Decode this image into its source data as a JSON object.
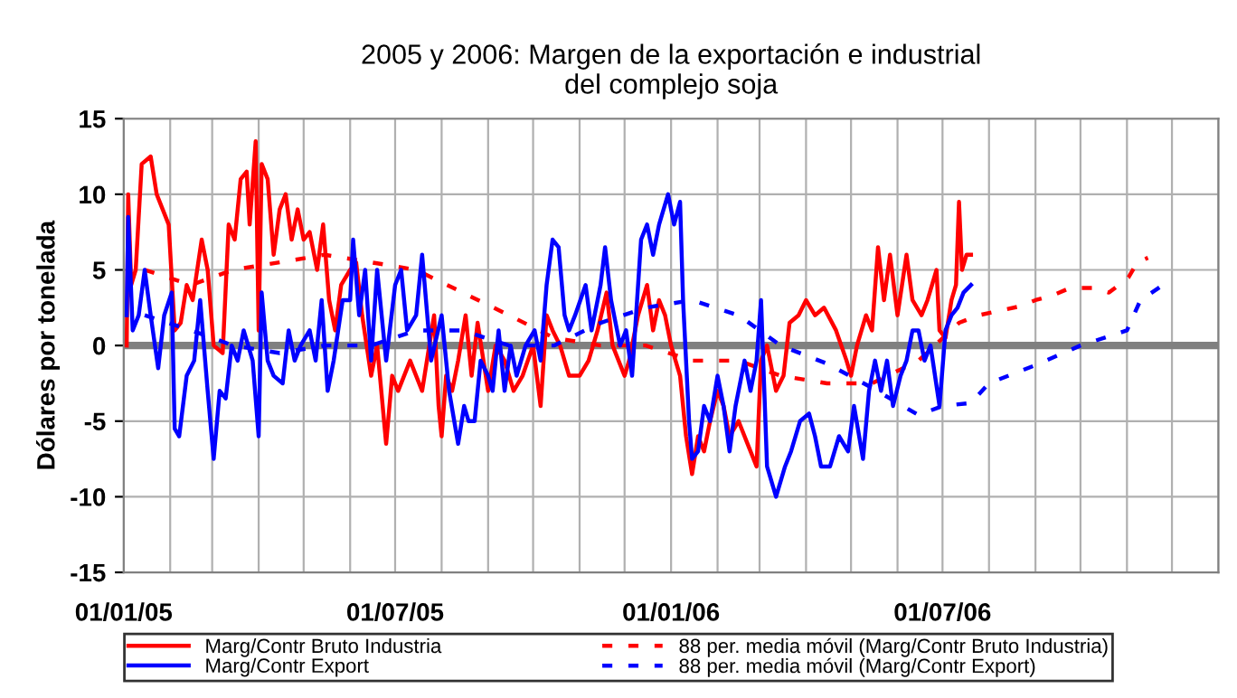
{
  "chart_data": {
    "type": "line",
    "title": "2005 y 2006: Margen de la exportación e industrial\ndel complejo soja",
    "ylabel": "Dólares por tonelada",
    "xlim": [
      "2005-01-01",
      "2007-01-01"
    ],
    "xticks": [
      {
        "value": "2005-01-01",
        "label": "01/01/05"
      },
      {
        "value": "2005-02-01",
        "label": null
      },
      {
        "value": "2005-03-01",
        "label": null
      },
      {
        "value": "2005-04-01",
        "label": null
      },
      {
        "value": "2005-05-01",
        "label": null
      },
      {
        "value": "2005-06-01",
        "label": null
      },
      {
        "value": "2005-07-01",
        "label": "01/07/05"
      },
      {
        "value": "2005-08-01",
        "label": null
      },
      {
        "value": "2005-09-01",
        "label": null
      },
      {
        "value": "2005-10-01",
        "label": null
      },
      {
        "value": "2005-11-01",
        "label": null
      },
      {
        "value": "2005-12-01",
        "label": null
      },
      {
        "value": "2006-01-01",
        "label": "01/01/06"
      },
      {
        "value": "2006-02-01",
        "label": null
      },
      {
        "value": "2006-03-01",
        "label": null
      },
      {
        "value": "2006-04-01",
        "label": null
      },
      {
        "value": "2006-05-01",
        "label": null
      },
      {
        "value": "2006-06-01",
        "label": null
      },
      {
        "value": "2006-07-01",
        "label": "01/07/06"
      },
      {
        "value": "2006-08-01",
        "label": null
      },
      {
        "value": "2006-09-01",
        "label": null
      },
      {
        "value": "2006-10-01",
        "label": null
      },
      {
        "value": "2006-11-01",
        "label": null
      },
      {
        "value": "2006-12-01",
        "label": null
      },
      {
        "value": "2007-01-01",
        "label": null
      }
    ],
    "ylim": [
      -15,
      15
    ],
    "yticks": [
      -15,
      -10,
      -5,
      0,
      5,
      10,
      15
    ],
    "grid": true,
    "legend": "bottom",
    "ref_lines": [
      {
        "axis": "y",
        "value": 0,
        "color": "#808080"
      }
    ],
    "series": [
      {
        "name": "Marg/Contr Bruto Industria",
        "color": "#ff0000",
        "line_style": "solid",
        "x": [
          "2005-01-03",
          "2005-01-04",
          "2005-01-06",
          "2005-01-09",
          "2005-01-13",
          "2005-01-19",
          "2005-01-23",
          "2005-01-27",
          "2005-01-31",
          "2005-02-04",
          "2005-02-08",
          "2005-02-12",
          "2005-02-16",
          "2005-02-22",
          "2005-02-26",
          "2005-03-02",
          "2005-03-08",
          "2005-03-12",
          "2005-03-16",
          "2005-03-20",
          "2005-03-24",
          "2005-03-26",
          "2005-03-30",
          "2005-04-01",
          "2005-04-03",
          "2005-04-07",
          "2005-04-11",
          "2005-04-15",
          "2005-04-19",
          "2005-04-23",
          "2005-04-27",
          "2005-05-01",
          "2005-05-05",
          "2005-05-10",
          "2005-05-14",
          "2005-05-18",
          "2005-05-22",
          "2005-05-26",
          "2005-06-01",
          "2005-06-05",
          "2005-06-09",
          "2005-06-15",
          "2005-06-19",
          "2005-06-25",
          "2005-06-29",
          "2005-07-03",
          "2005-07-11",
          "2005-07-19",
          "2005-07-27",
          "2005-07-30",
          "2005-08-01",
          "2005-08-04",
          "2005-08-08",
          "2005-08-12",
          "2005-08-17",
          "2005-08-21",
          "2005-08-25",
          "2005-09-01",
          "2005-09-06",
          "2005-09-12",
          "2005-09-18",
          "2005-09-24",
          "2005-10-01",
          "2005-10-06",
          "2005-10-10",
          "2005-10-14",
          "2005-10-19",
          "2005-10-25",
          "2005-11-01",
          "2005-11-07",
          "2005-11-13",
          "2005-11-19",
          "2005-11-23",
          "2005-12-01",
          "2005-12-04",
          "2005-12-10",
          "2005-12-16",
          "2005-12-20",
          "2005-12-24",
          "2005-12-28",
          "2006-01-01",
          "2006-01-07",
          "2006-01-11",
          "2006-01-15",
          "2006-01-19",
          "2006-01-23",
          "2006-01-27",
          "2006-02-01",
          "2006-02-05",
          "2006-02-09",
          "2006-02-15",
          "2006-02-21",
          "2006-02-27",
          "2006-03-02",
          "2006-03-06",
          "2006-03-12",
          "2006-03-17",
          "2006-03-21",
          "2006-03-27",
          "2006-04-01",
          "2006-04-07",
          "2006-04-13",
          "2006-04-21",
          "2006-04-28",
          "2006-05-01",
          "2006-05-05",
          "2006-05-11",
          "2006-05-15",
          "2006-05-19",
          "2006-05-23",
          "2006-05-27",
          "2006-06-01",
          "2006-06-07",
          "2006-06-11",
          "2006-06-17",
          "2006-06-21",
          "2006-06-27",
          "2006-06-29",
          "2006-07-03",
          "2006-07-07",
          "2006-07-10",
          "2006-07-12",
          "2006-07-14",
          "2006-07-17",
          "2006-07-20"
        ],
        "values": [
          0,
          10,
          4,
          5,
          12,
          12.5,
          10,
          9,
          8,
          1,
          1.5,
          4,
          3,
          7,
          5,
          0,
          -0.5,
          8,
          7,
          11,
          11.5,
          8,
          13.5,
          1,
          12,
          11,
          6,
          9,
          10,
          7,
          9,
          7,
          7.5,
          5,
          8,
          3,
          1,
          4,
          5,
          5.5,
          2,
          -2,
          0,
          -6.5,
          -2,
          -3,
          -1,
          -3,
          2,
          -4,
          -6,
          -2,
          -3,
          -1,
          2,
          -2,
          1.5,
          -3,
          0,
          -1,
          -3,
          -2,
          0,
          -4,
          2,
          1,
          0,
          -2,
          -2,
          -1,
          1,
          3.5,
          0,
          -2,
          -1,
          2,
          4,
          1,
          3,
          2,
          0,
          -2,
          -6,
          -8.5,
          -6,
          -7,
          -5,
          -3,
          -4,
          -6,
          -5,
          -6.5,
          -8,
          -1,
          0,
          -3,
          -2,
          1.5,
          2,
          3,
          2,
          2.5,
          1,
          -1,
          -2,
          0,
          2,
          1,
          6.5,
          3,
          6,
          2,
          6,
          3,
          2,
          3,
          5,
          1,
          0.5,
          3,
          4,
          9.5,
          5,
          6,
          6
        ]
      },
      {
        "name": "Marg/Contr Export",
        "color": "#0000ff",
        "line_style": "solid",
        "x": [
          "2005-01-03",
          "2005-01-04",
          "2005-01-07",
          "2005-01-11",
          "2005-01-15",
          "2005-01-19",
          "2005-01-24",
          "2005-01-28",
          "2005-02-02",
          "2005-02-04",
          "2005-02-07",
          "2005-02-12",
          "2005-02-17",
          "2005-02-21",
          "2005-02-26",
          "2005-03-02",
          "2005-03-06",
          "2005-03-10",
          "2005-03-14",
          "2005-03-18",
          "2005-03-22",
          "2005-03-28",
          "2005-04-01",
          "2005-04-03",
          "2005-04-07",
          "2005-04-11",
          "2005-04-17",
          "2005-04-21",
          "2005-04-25",
          "2005-04-29",
          "2005-05-05",
          "2005-05-09",
          "2005-05-13",
          "2005-05-17",
          "2005-05-21",
          "2005-05-27",
          "2005-06-01",
          "2005-06-03",
          "2005-06-07",
          "2005-06-11",
          "2005-06-15",
          "2005-06-19",
          "2005-06-25",
          "2005-07-01",
          "2005-07-05",
          "2005-07-09",
          "2005-07-15",
          "2005-07-19",
          "2005-07-25",
          "2005-08-01",
          "2005-08-06",
          "2005-08-12",
          "2005-08-16",
          "2005-08-19",
          "2005-08-23",
          "2005-08-27",
          "2005-09-01",
          "2005-09-04",
          "2005-09-08",
          "2005-09-12",
          "2005-09-16",
          "2005-09-20",
          "2005-09-26",
          "2005-10-02",
          "2005-10-06",
          "2005-10-10",
          "2005-10-14",
          "2005-10-18",
          "2005-10-22",
          "2005-10-25",
          "2005-10-29",
          "2005-11-05",
          "2005-11-09",
          "2005-11-15",
          "2005-11-18",
          "2005-11-22",
          "2005-11-28",
          "2005-12-02",
          "2005-12-06",
          "2005-12-12",
          "2005-12-16",
          "2005-12-20",
          "2005-12-24",
          "2005-12-30",
          "2006-01-03",
          "2006-01-07",
          "2006-01-09",
          "2006-01-13",
          "2006-01-15",
          "2006-01-19",
          "2006-01-23",
          "2006-01-27",
          "2006-02-01",
          "2006-02-05",
          "2006-02-09",
          "2006-02-13",
          "2006-02-19",
          "2006-02-23",
          "2006-02-27",
          "2006-03-02",
          "2006-03-06",
          "2006-03-12",
          "2006-03-18",
          "2006-03-22",
          "2006-03-28",
          "2006-04-03",
          "2006-04-07",
          "2006-04-11",
          "2006-04-17",
          "2006-04-23",
          "2006-04-29",
          "2006-05-03",
          "2006-05-09",
          "2006-05-13",
          "2006-05-17",
          "2006-05-21",
          "2006-05-25",
          "2006-05-29",
          "2006-06-03",
          "2006-06-07",
          "2006-06-11",
          "2006-06-15",
          "2006-06-19",
          "2006-06-23",
          "2006-06-29",
          "2006-07-03",
          "2006-07-07",
          "2006-07-11",
          "2006-07-15",
          "2006-07-20"
        ],
        "values": [
          2,
          8.5,
          1,
          2,
          5,
          2,
          -1.5,
          2,
          3.5,
          -5.5,
          -6,
          -2,
          -1,
          3,
          -3,
          -7.5,
          -3,
          -3.5,
          0,
          -1,
          1,
          -1,
          -6,
          3.5,
          -1,
          -2,
          -2.5,
          1,
          -1,
          0,
          1,
          -1,
          3,
          -3,
          -1,
          3,
          3,
          7,
          2,
          5,
          -1,
          5,
          -1,
          4,
          5,
          1,
          2,
          6,
          -1,
          2,
          -3,
          -6.5,
          -4,
          -5,
          -5,
          -1,
          -2,
          -3,
          1,
          -3,
          0,
          -2,
          0,
          1,
          -1,
          4,
          7,
          6.5,
          2,
          1,
          2,
          4,
          1,
          4,
          6.5,
          3,
          0,
          1,
          -2,
          7,
          8,
          6,
          8,
          10,
          8,
          9.5,
          3,
          -5,
          -7.5,
          -7,
          -4,
          -5,
          -2,
          -4,
          -7,
          -4,
          -1,
          -3,
          -1,
          3,
          -8,
          -10,
          -8,
          -7,
          -5,
          -4.5,
          -6,
          -8,
          -8,
          -6,
          -7,
          -4,
          -7.5,
          -3,
          -1,
          -3,
          -1,
          -4,
          -2,
          -1,
          1,
          1,
          -1,
          0,
          -4,
          1,
          2,
          2.5,
          3.5,
          4
        ]
      },
      {
        "name": "88 per. media móvil (Marg/Contr Bruto Industria)",
        "color": "#ff0000",
        "line_style": "dashed",
        "x": [
          "2005-01-15",
          "2005-02-15",
          "2005-03-15",
          "2005-04-15",
          "2005-05-15",
          "2005-06-15",
          "2005-07-15",
          "2005-08-15",
          "2005-09-15",
          "2005-10-15",
          "2005-11-15",
          "2005-12-15",
          "2006-01-15",
          "2006-02-15",
          "2006-03-15",
          "2006-04-15",
          "2006-05-15",
          "2006-06-15",
          "2006-07-12",
          "2006-07-25",
          "2006-08-08",
          "2006-08-22",
          "2006-09-01",
          "2006-09-12",
          "2006-09-24",
          "2006-10-09",
          "2006-10-20",
          "2006-11-02",
          "2006-11-08",
          "2006-11-15"
        ],
        "values": [
          5,
          4,
          5,
          5.5,
          6,
          5.5,
          5,
          3.5,
          2,
          0.5,
          0,
          0,
          -1,
          -1,
          -2,
          -2.5,
          -2.5,
          -1,
          1.5,
          2,
          2.3,
          2.6,
          3,
          3.3,
          3.8,
          3.8,
          3.5,
          4.5,
          5.5,
          5.8
        ]
      },
      {
        "name": "88 per. media móvil (Marg/Contr Export)",
        "color": "#0000ff",
        "line_style": "dashed",
        "x": [
          "2005-01-15",
          "2005-02-15",
          "2005-03-15",
          "2005-04-15",
          "2005-05-15",
          "2005-06-15",
          "2005-07-15",
          "2005-08-15",
          "2005-09-15",
          "2005-10-15",
          "2005-11-15",
          "2005-12-15",
          "2006-01-15",
          "2006-02-15",
          "2006-03-15",
          "2006-04-15",
          "2006-05-15",
          "2006-06-15",
          "2006-07-01",
          "2006-07-20",
          "2006-08-01",
          "2006-09-01",
          "2006-10-01",
          "2006-11-01",
          "2006-11-10",
          "2006-11-25"
        ],
        "values": [
          2,
          1,
          0,
          -0.5,
          0,
          0,
          1,
          1,
          0,
          0,
          1.5,
          2.5,
          3,
          2,
          0,
          -1.2,
          -2.8,
          -4.6,
          -4,
          -3.8,
          -2.5,
          -1.3,
          0,
          1,
          3,
          4
        ]
      }
    ]
  }
}
